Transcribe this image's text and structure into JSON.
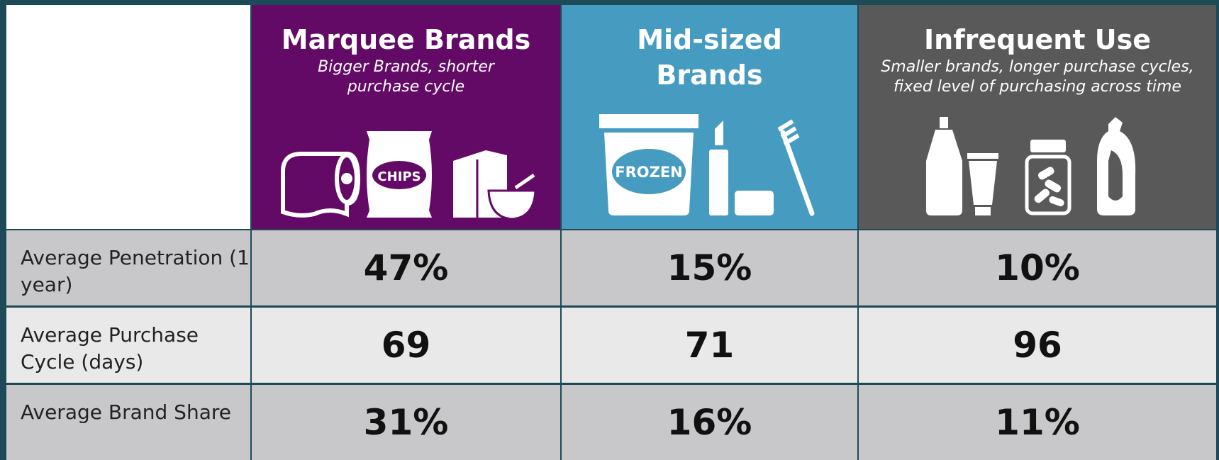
{
  "columns": [
    {
      "title": "Marquee Brands",
      "subtitle": "Bigger Brands, shorter purchase cycle",
      "icon_label": "CHIPS"
    },
    {
      "title": "Mid-sized Brands",
      "icon_label": "FROZEN"
    },
    {
      "title": "Infrequent Use",
      "subtitle": "Smaller brands, longer purchase cycles, fixed level of purchasing across time"
    }
  ],
  "rows": [
    {
      "label": "Average Penetration (1 year)",
      "values": [
        "47%",
        "15%",
        "10%"
      ]
    },
    {
      "label": "Average Purchase Cycle (days)",
      "values": [
        "69",
        "71",
        "96"
      ]
    },
    {
      "label": "Average Brand Share",
      "values": [
        "31%",
        "16%",
        "11%"
      ]
    }
  ]
}
